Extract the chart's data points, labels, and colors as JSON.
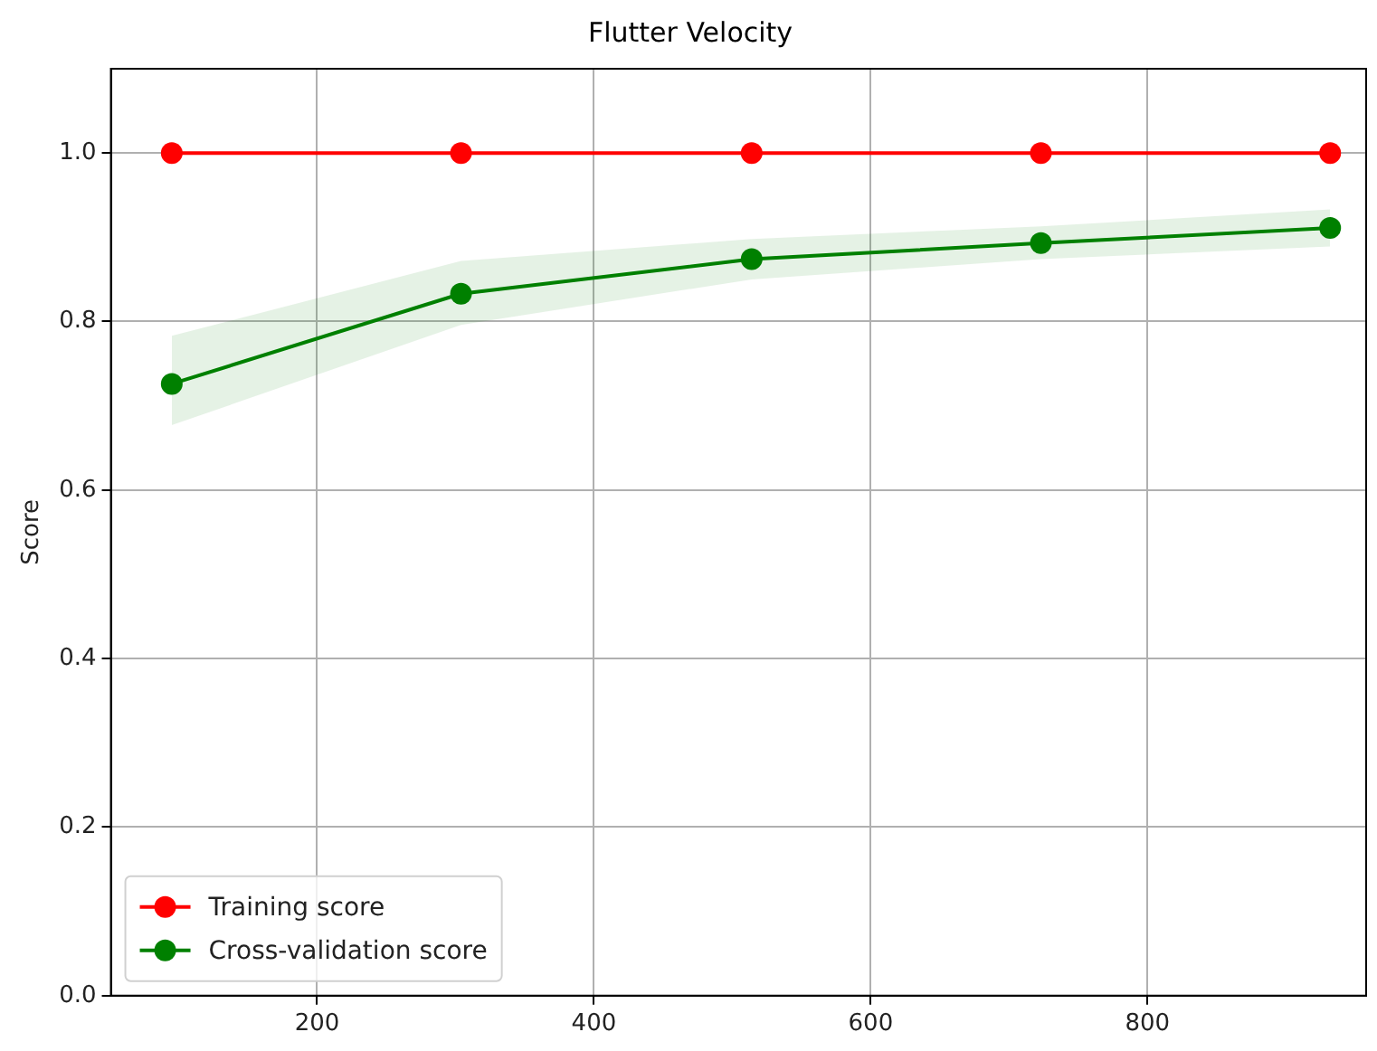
{
  "chart_data": {
    "type": "line",
    "title": "Flutter Velocity",
    "ylabel": "Score",
    "x": [
      95,
      304,
      514,
      723,
      932
    ],
    "xlim": [
      51,
      958
    ],
    "xticks": [
      200,
      400,
      600,
      800
    ],
    "ylim": [
      0,
      1.1
    ],
    "yticks": [
      {
        "value": 0,
        "label": "0.0"
      },
      0.2,
      0.4,
      0.6,
      0.8,
      {
        "value": 1,
        "label": "1.0"
      }
    ],
    "grid": true,
    "legend": "bottom left",
    "marker": "circle",
    "line_style": "solid",
    "series": [
      {
        "name": "Training score",
        "color": "#ff0000",
        "values": [
          1.0,
          1.0,
          1.0,
          1.0,
          1.0
        ]
      },
      {
        "name": "Cross-validation score",
        "color": "#008000",
        "values": [
          0.726,
          0.833,
          0.874,
          0.893,
          0.911
        ],
        "lower": [
          0.677,
          0.796,
          0.85,
          0.874,
          0.889
        ],
        "upper": [
          0.783,
          0.872,
          0.898,
          0.913,
          0.933
        ]
      }
    ]
  }
}
